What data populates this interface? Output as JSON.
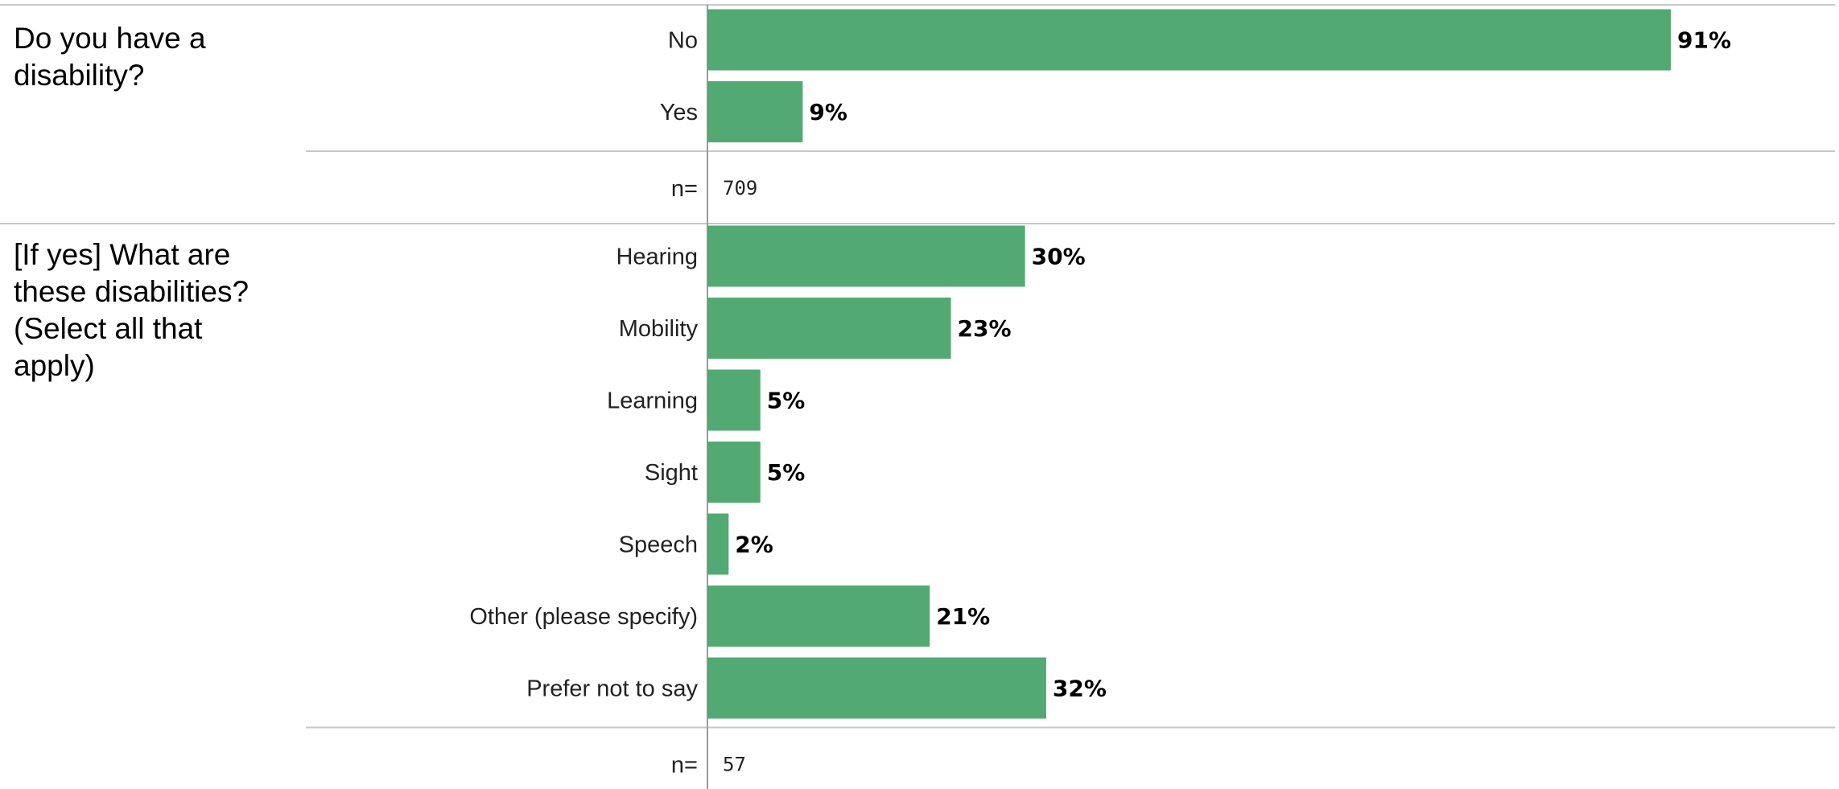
{
  "chart_data": [
    {
      "type": "bar",
      "orientation": "horizontal",
      "title": "Do you have a disability?",
      "categories": [
        "No",
        "Yes"
      ],
      "values": [
        91,
        9
      ],
      "value_labels": [
        "91%",
        "9%"
      ],
      "n_label": "n=",
      "n_value": "709",
      "xlim": [
        0,
        100
      ]
    },
    {
      "type": "bar",
      "orientation": "horizontal",
      "title": "[If yes] What are these disabilities? (Select all that apply)",
      "categories": [
        "Hearing",
        "Mobility",
        "Learning",
        "Sight",
        "Speech",
        "Other (please specify)",
        "Prefer not to say"
      ],
      "values": [
        30,
        23,
        5,
        5,
        2,
        21,
        32
      ],
      "value_labels": [
        "30%",
        "23%",
        "5%",
        "5%",
        "2%",
        "21%",
        "32%"
      ],
      "n_label": "n=",
      "n_value": "57",
      "xlim": [
        0,
        100
      ]
    }
  ],
  "colors": {
    "bar": "#52a972",
    "rule": "#c8c8c8",
    "axis": "#9a9a9a"
  }
}
